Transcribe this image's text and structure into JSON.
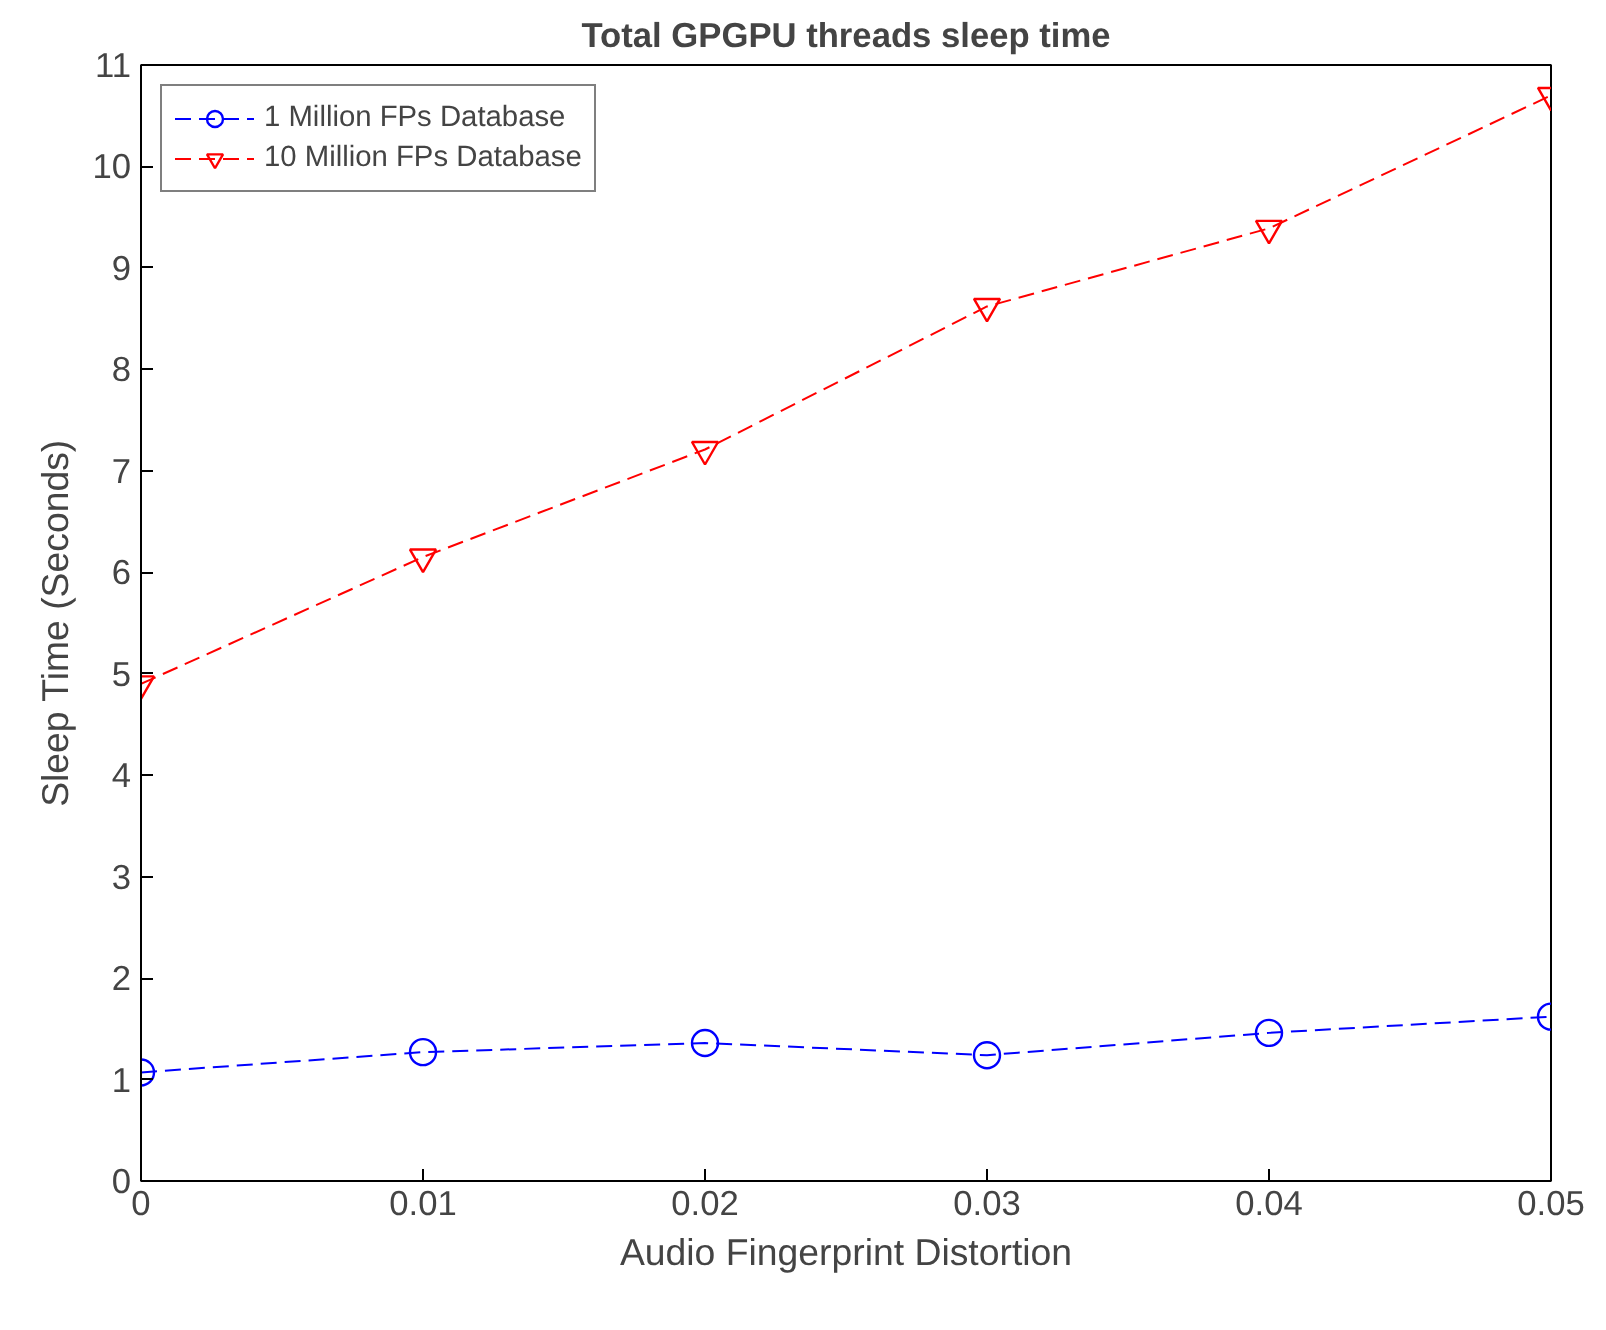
{
  "chart_data": {
    "type": "line",
    "title": "Total GPGPU threads sleep time",
    "xlabel": "Audio Fingerprint Distortion",
    "ylabel": "Sleep Time (Seconds)",
    "x": [
      0,
      0.01,
      0.02,
      0.03,
      0.04,
      0.05
    ],
    "series": [
      {
        "name": "1 Million FPs Database",
        "color": "#0000ff",
        "marker": "circle",
        "values": [
          1.07,
          1.27,
          1.36,
          1.24,
          1.46,
          1.62
        ]
      },
      {
        "name": "10 Million FPs Database",
        "color": "#ff0000",
        "marker": "triangle_down",
        "values": [
          4.9,
          6.15,
          7.21,
          8.62,
          9.39,
          10.7
        ]
      }
    ],
    "xlim": [
      0,
      0.05
    ],
    "xticks": [
      0,
      0.01,
      0.02,
      0.03,
      0.04,
      0.05
    ],
    "ylim": [
      0,
      11
    ],
    "yticks": [
      0,
      1,
      2,
      3,
      4,
      5,
      6,
      7,
      8,
      9,
      10,
      11
    ],
    "grid": false,
    "legend": "top left",
    "line_style": "dashed"
  }
}
